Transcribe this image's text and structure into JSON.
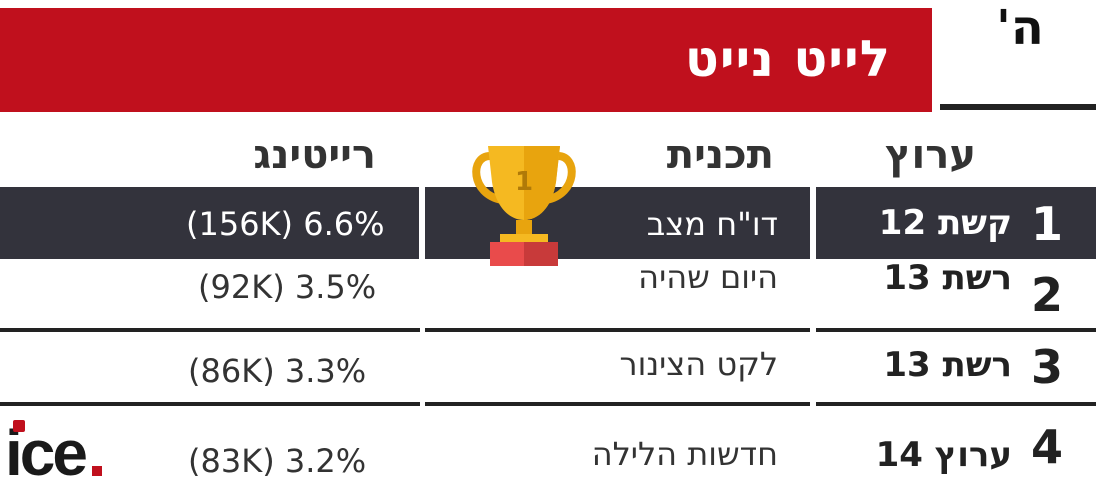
{
  "colors": {
    "accent": "#c0101d",
    "highlight": "#33333c",
    "text": "#222222"
  },
  "banner": {
    "title": "לייט נייט"
  },
  "day": {
    "letter": "ה'"
  },
  "headers": {
    "channel": "ערוץ",
    "program": "תכנית",
    "rating": "רייטינג"
  },
  "rows": [
    {
      "rank": "1",
      "channel": "קשת 12",
      "program": "דו\"ח מצב",
      "rating": "(156K) 6.6%",
      "highlighted": true
    },
    {
      "rank": "2",
      "channel": "רשת 13",
      "program": "היום שהיה",
      "rating": "(92K) 3.5%"
    },
    {
      "rank": "3",
      "channel": "רשת 13",
      "program": "לקט הצינור",
      "rating": "(86K) 3.3%"
    },
    {
      "rank": "4",
      "channel": "ערוץ 14",
      "program": "חדשות הלילה",
      "rating": "(83K) 3.2%"
    }
  ],
  "trophy": {
    "icon": "trophy-icon",
    "number": "1"
  },
  "logo": {
    "text": "ice"
  }
}
